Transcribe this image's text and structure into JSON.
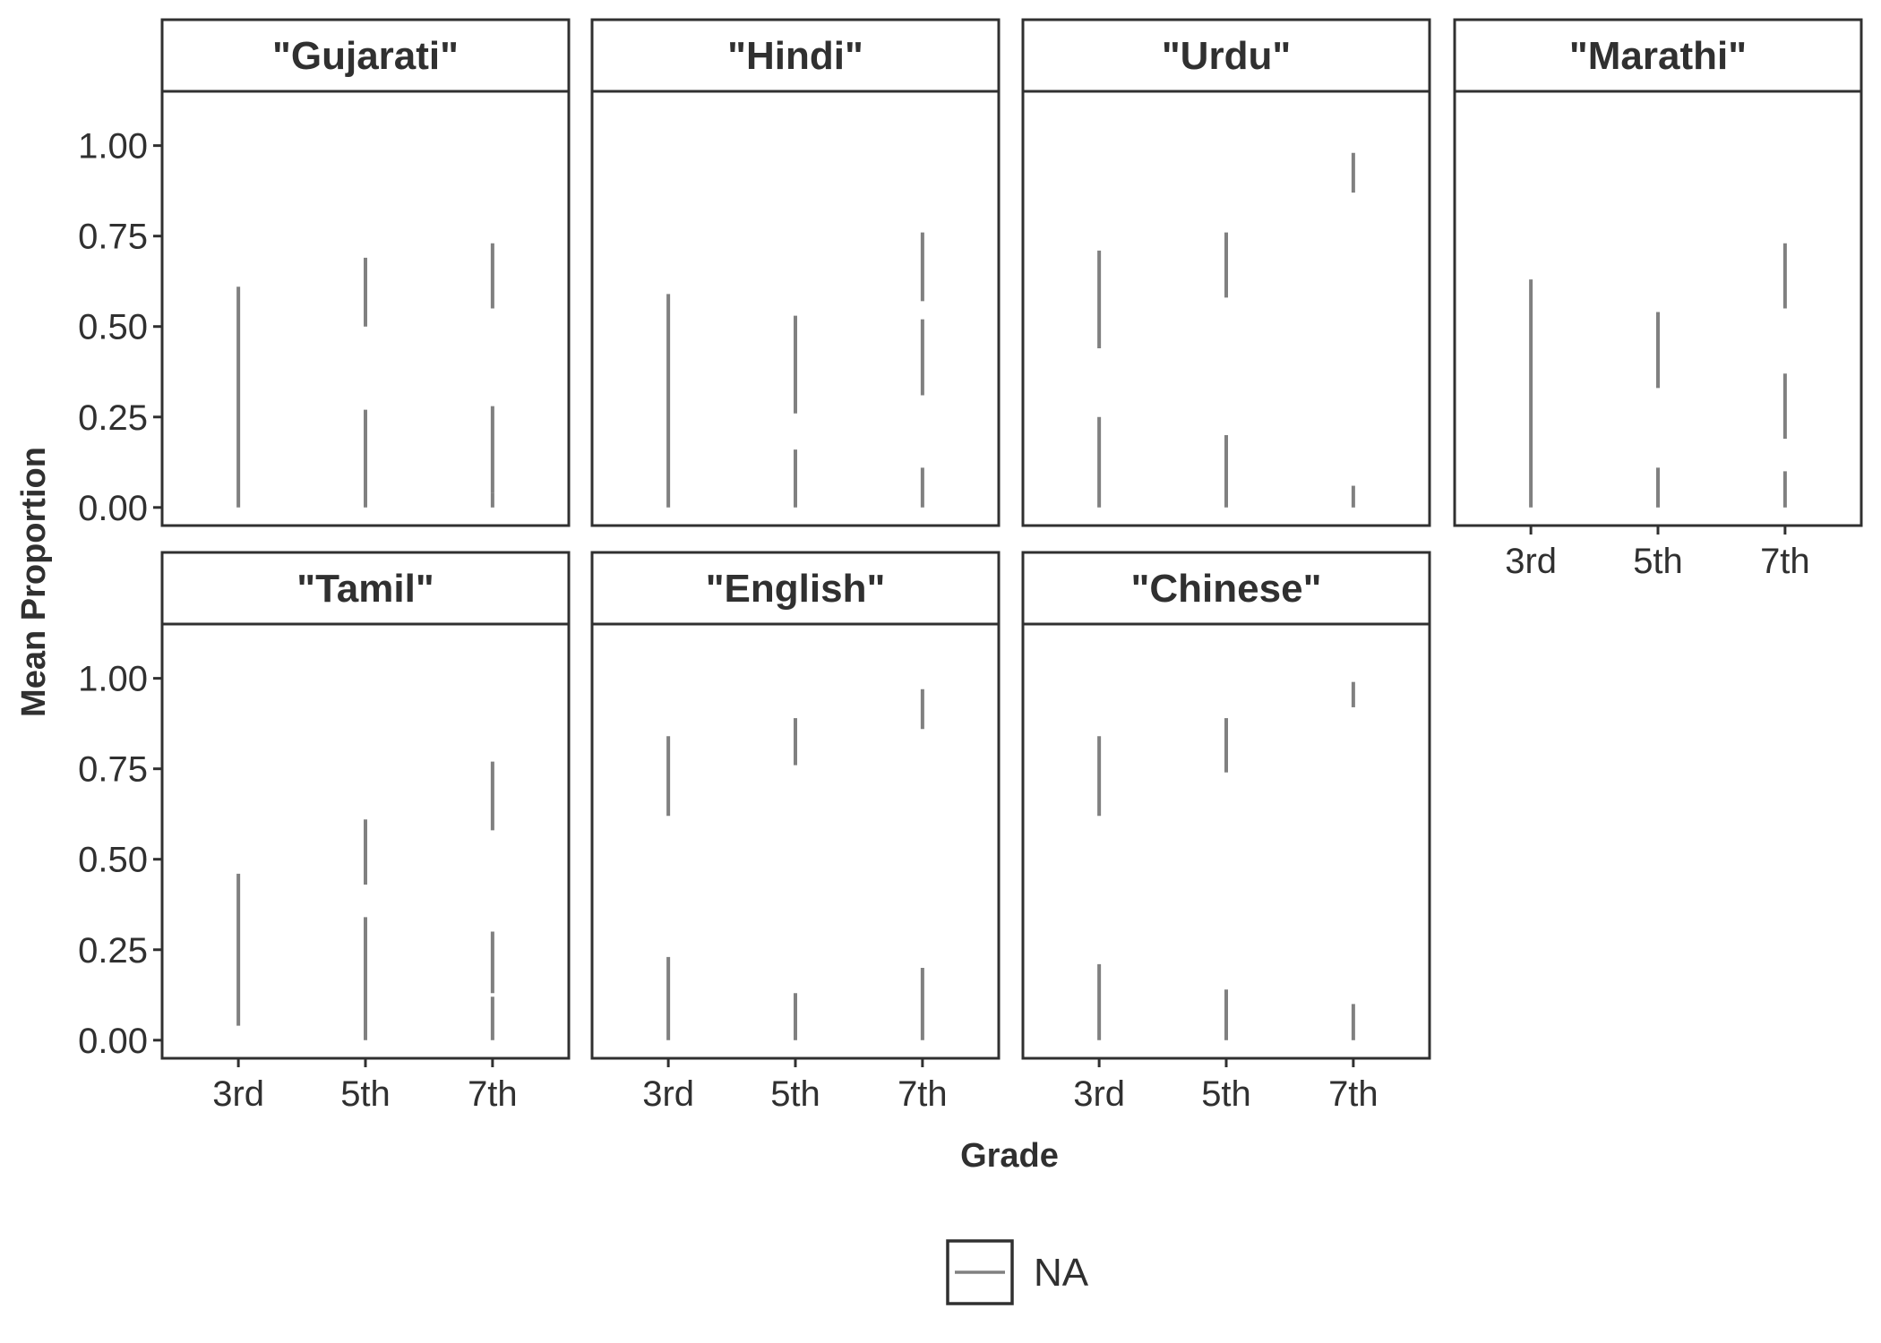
{
  "chart_data": {
    "type": "errorbar",
    "xlabel": "Grade",
    "ylabel": "Mean Proportion",
    "categories": [
      "3rd",
      "5th",
      "7th"
    ],
    "ylim": [
      -0.05,
      1.15
    ],
    "y_ticks": [
      "0.00",
      "0.25",
      "0.50",
      "0.75",
      "1.00"
    ],
    "y_tick_values": [
      0,
      0.25,
      0.5,
      0.75,
      1.0
    ],
    "grid": false,
    "legend": {
      "position": "bottom",
      "entries": [
        "NA"
      ],
      "color": "#808080"
    },
    "panels": [
      {
        "title": "\"Gujarati\"",
        "intervals": [
          {
            "x": "3rd",
            "low": 0.0,
            "high": 0.61
          },
          {
            "x": "5th",
            "low": 0.5,
            "high": 0.69
          },
          {
            "x": "5th",
            "low": 0.0,
            "high": 0.27
          },
          {
            "x": "7th",
            "low": 0.55,
            "high": 0.73
          },
          {
            "x": "7th",
            "low": 0.04,
            "high": 0.28
          },
          {
            "x": "7th",
            "low": 0.0,
            "high": 0.04
          }
        ]
      },
      {
        "title": "\"Hindi\"",
        "intervals": [
          {
            "x": "3rd",
            "low": 0.0,
            "high": 0.59
          },
          {
            "x": "5th",
            "low": 0.26,
            "high": 0.53
          },
          {
            "x": "5th",
            "low": 0.0,
            "high": 0.16
          },
          {
            "x": "7th",
            "low": 0.57,
            "high": 0.76
          },
          {
            "x": "7th",
            "low": 0.31,
            "high": 0.52
          },
          {
            "x": "7th",
            "low": 0.0,
            "high": 0.11
          }
        ]
      },
      {
        "title": "\"Urdu\"",
        "intervals": [
          {
            "x": "3rd",
            "low": 0.44,
            "high": 0.71
          },
          {
            "x": "3rd",
            "low": 0.0,
            "high": 0.25
          },
          {
            "x": "5th",
            "low": 0.58,
            "high": 0.76
          },
          {
            "x": "5th",
            "low": 0.0,
            "high": 0.2
          },
          {
            "x": "7th",
            "low": 0.87,
            "high": 0.98
          },
          {
            "x": "7th",
            "low": 0.0,
            "high": 0.06
          }
        ]
      },
      {
        "title": "\"Marathi\"",
        "intervals": [
          {
            "x": "3rd",
            "low": 0.0,
            "high": 0.63
          },
          {
            "x": "5th",
            "low": 0.33,
            "high": 0.54
          },
          {
            "x": "5th",
            "low": 0.0,
            "high": 0.11
          },
          {
            "x": "7th",
            "low": 0.55,
            "high": 0.73
          },
          {
            "x": "7th",
            "low": 0.19,
            "high": 0.37
          },
          {
            "x": "7th",
            "low": 0.0,
            "high": 0.1
          }
        ]
      },
      {
        "title": "\"Tamil\"",
        "intervals": [
          {
            "x": "3rd",
            "low": 0.04,
            "high": 0.46
          },
          {
            "x": "5th",
            "low": 0.43,
            "high": 0.61
          },
          {
            "x": "5th",
            "low": 0.0,
            "high": 0.34
          },
          {
            "x": "7th",
            "low": 0.58,
            "high": 0.77
          },
          {
            "x": "7th",
            "low": 0.13,
            "high": 0.3
          },
          {
            "x": "7th",
            "low": 0.0,
            "high": 0.12
          }
        ]
      },
      {
        "title": "\"English\"",
        "intervals": [
          {
            "x": "3rd",
            "low": 0.62,
            "high": 0.84
          },
          {
            "x": "3rd",
            "low": 0.0,
            "high": 0.23
          },
          {
            "x": "5th",
            "low": 0.76,
            "high": 0.89
          },
          {
            "x": "5th",
            "low": 0.0,
            "high": 0.13
          },
          {
            "x": "7th",
            "low": 0.86,
            "high": 0.97
          },
          {
            "x": "7th",
            "low": 0.0,
            "high": 0.2
          }
        ]
      },
      {
        "title": "\"Chinese\"",
        "intervals": [
          {
            "x": "3rd",
            "low": 0.62,
            "high": 0.84
          },
          {
            "x": "3rd",
            "low": 0.0,
            "high": 0.21
          },
          {
            "x": "5th",
            "low": 0.74,
            "high": 0.89
          },
          {
            "x": "5th",
            "low": 0.0,
            "high": 0.14
          },
          {
            "x": "7th",
            "low": 0.92,
            "high": 0.99
          },
          {
            "x": "7th",
            "low": 0.0,
            "high": 0.1
          }
        ]
      }
    ]
  }
}
